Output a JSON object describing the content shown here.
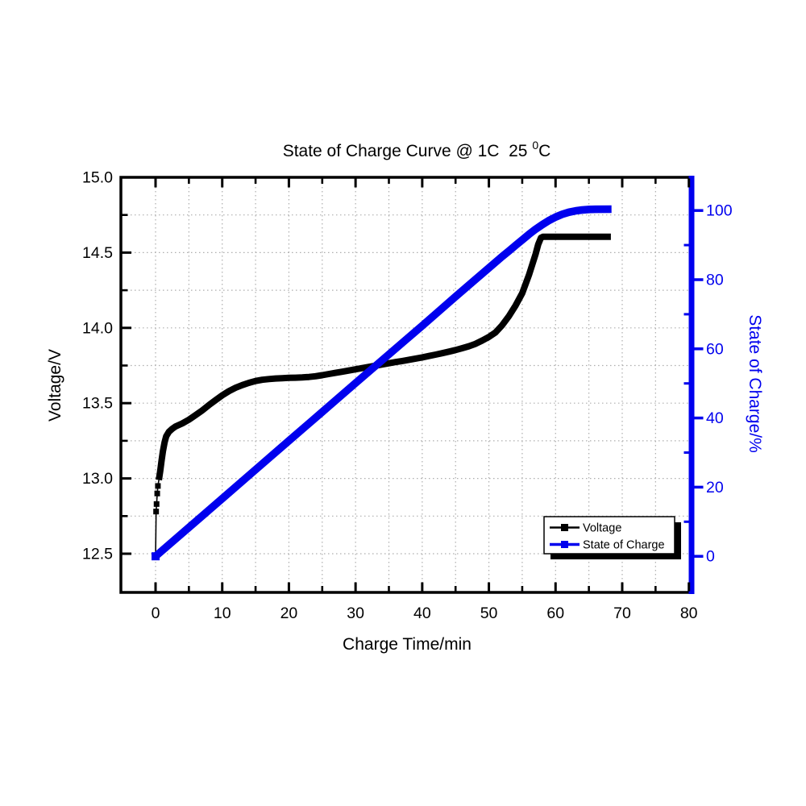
{
  "title": {
    "full": "State of Charge Curve @ 1C 25 ⁰C",
    "main": "State of Charge Curve @ 1C  25 ",
    "sup": "0",
    "unit": "C"
  },
  "colors": {
    "voltage": "#000000",
    "soc": "#0000EE",
    "grid": "#ADADAD",
    "background": "#FFFFFF"
  },
  "legend": {
    "items": [
      {
        "label": "Voltage",
        "color": "#000000"
      },
      {
        "label": "State of Charge",
        "color": "#0000EE"
      }
    ]
  },
  "chart_data": {
    "type": "line",
    "title": "State of Charge Curve @ 1C 25 ⁰C",
    "xlabel": "Charge Time/min",
    "ylabel_left": "Voltage/V",
    "ylabel_right": "State of Charge/%",
    "grid": true,
    "legend_position": "inside lower right",
    "x_axis": {
      "range": [
        -5.2,
        80.4
      ],
      "majors": [
        0,
        10,
        20,
        30,
        40,
        50,
        60,
        70,
        80
      ],
      "minors": [
        5,
        15,
        25,
        35,
        45,
        55,
        65,
        75
      ],
      "decimals": 0
    },
    "y_left": {
      "range": [
        12.243,
        15.0
      ],
      "majors": [
        12.5,
        13.0,
        13.5,
        14.0,
        14.5,
        15.0
      ],
      "minors": [
        12.75,
        13.25,
        13.75,
        14.25,
        14.75
      ],
      "decimals": 1
    },
    "y_right": {
      "range": [
        -10.44,
        109.6
      ],
      "majors": [
        0,
        20,
        40,
        60,
        80,
        100
      ],
      "minors": [
        10,
        30,
        50,
        70,
        90
      ],
      "decimals": 0
    },
    "series": [
      {
        "name": "Voltage",
        "axis": "left",
        "color": "#000000",
        "line_width": 8,
        "start_marker_points": 5,
        "points": [
          [
            0,
            12.47
          ],
          [
            0.08,
            12.78
          ],
          [
            0.15,
            12.83
          ],
          [
            0.25,
            12.9
          ],
          [
            0.35,
            12.95
          ],
          [
            0.5,
            12.99
          ],
          [
            0.7,
            13.05
          ],
          [
            0.9,
            13.12
          ],
          [
            1.1,
            13.18
          ],
          [
            1.35,
            13.24
          ],
          [
            1.6,
            13.28
          ],
          [
            2,
            13.31
          ],
          [
            2.5,
            13.33
          ],
          [
            3,
            13.345
          ],
          [
            4,
            13.365
          ],
          [
            5,
            13.39
          ],
          [
            6,
            13.42
          ],
          [
            7,
            13.452
          ],
          [
            8,
            13.487
          ],
          [
            9,
            13.52
          ],
          [
            10,
            13.552
          ],
          [
            11,
            13.58
          ],
          [
            12,
            13.602
          ],
          [
            13,
            13.62
          ],
          [
            14,
            13.635
          ],
          [
            15,
            13.647
          ],
          [
            16,
            13.655
          ],
          [
            17,
            13.66
          ],
          [
            18,
            13.664
          ],
          [
            19,
            13.666
          ],
          [
            20,
            13.668
          ],
          [
            21,
            13.669
          ],
          [
            22,
            13.671
          ],
          [
            23,
            13.674
          ],
          [
            24,
            13.679
          ],
          [
            25,
            13.686
          ],
          [
            26,
            13.694
          ],
          [
            27,
            13.701
          ],
          [
            28,
            13.709
          ],
          [
            29,
            13.717
          ],
          [
            30,
            13.725
          ],
          [
            31,
            13.733
          ],
          [
            32,
            13.741
          ],
          [
            33,
            13.749
          ],
          [
            34,
            13.757
          ],
          [
            35,
            13.765
          ],
          [
            36,
            13.773
          ],
          [
            37,
            13.78
          ],
          [
            38,
            13.788
          ],
          [
            39,
            13.796
          ],
          [
            40,
            13.804
          ],
          [
            41,
            13.813
          ],
          [
            42,
            13.822
          ],
          [
            43,
            13.832
          ],
          [
            44,
            13.842
          ],
          [
            45,
            13.853
          ],
          [
            46,
            13.865
          ],
          [
            47,
            13.878
          ],
          [
            48,
            13.894
          ],
          [
            49,
            13.916
          ],
          [
            50,
            13.94
          ],
          [
            51,
            13.97
          ],
          [
            52,
            14.018
          ],
          [
            53,
            14.078
          ],
          [
            54,
            14.148
          ],
          [
            55,
            14.23
          ],
          [
            56,
            14.35
          ],
          [
            57,
            14.49
          ],
          [
            57.4,
            14.555
          ],
          [
            57.8,
            14.598
          ],
          [
            58.1,
            14.605
          ],
          [
            68.3,
            14.605
          ]
        ]
      },
      {
        "name": "State of Charge",
        "axis": "right",
        "color": "#0000EE",
        "line_width": 9.5,
        "points": [
          [
            0,
            0
          ],
          [
            5,
            8.35
          ],
          [
            10,
            16.7
          ],
          [
            15,
            25.05
          ],
          [
            20,
            33.4
          ],
          [
            25,
            41.75
          ],
          [
            30,
            50.1
          ],
          [
            35,
            58.4
          ],
          [
            40,
            66.7
          ],
          [
            45,
            75.1
          ],
          [
            48,
            80.1
          ],
          [
            50,
            83.4
          ],
          [
            52,
            86.7
          ],
          [
            53,
            88.3
          ],
          [
            54,
            89.9
          ],
          [
            55,
            91.5
          ],
          [
            56,
            93.1
          ],
          [
            57,
            94.6
          ],
          [
            58,
            95.9
          ],
          [
            59,
            97.1
          ],
          [
            60,
            98.1
          ],
          [
            61,
            98.9
          ],
          [
            62,
            99.5
          ],
          [
            63,
            99.9
          ],
          [
            64,
            100.15
          ],
          [
            65,
            100.3
          ],
          [
            66,
            100.38
          ],
          [
            68.4,
            100.4
          ]
        ]
      }
    ]
  }
}
